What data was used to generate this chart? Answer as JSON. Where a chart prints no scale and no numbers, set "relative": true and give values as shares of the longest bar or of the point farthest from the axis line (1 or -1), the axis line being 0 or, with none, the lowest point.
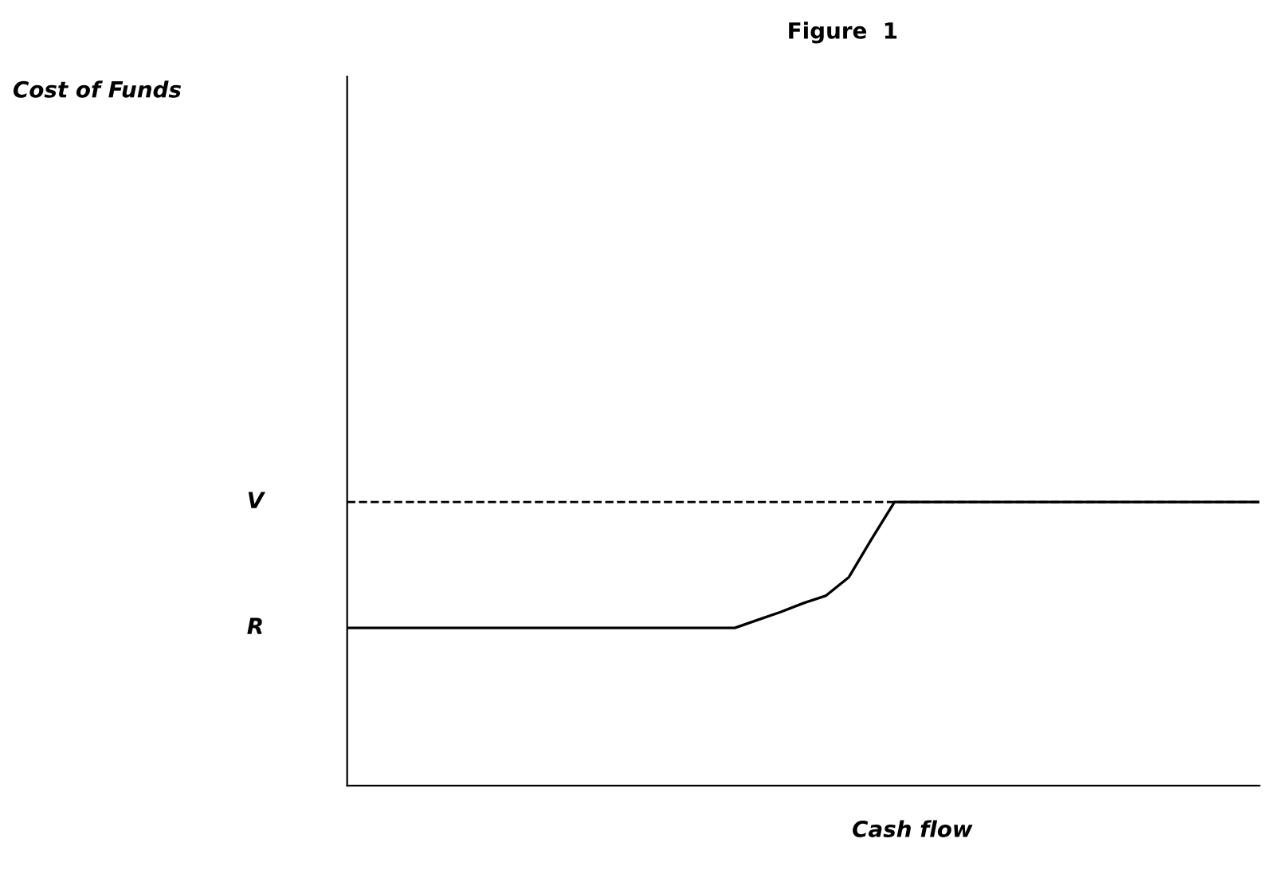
{
  "chart_data": {
    "type": "line",
    "title": "Figure  1",
    "xlabel": "Cash flow",
    "relative": true,
    "marker": "none",
    "line_style": "solid",
    "categories": [
      null,
      null,
      null,
      null,
      null,
      null,
      null,
      null,
      null,
      null,
      null,
      null,
      null,
      null,
      null,
      null,
      null,
      null,
      null,
      null,
      null,
      null,
      null,
      null,
      null,
      null,
      null,
      null,
      null,
      null,
      null,
      null,
      null,
      null,
      null,
      null,
      null,
      null,
      null,
      null,
      null
    ],
    "series": [
      {
        "color": "#000000",
        "values": [
          0.556,
          0.556,
          0.556,
          0.556,
          0.556,
          0.556,
          0.556,
          0.556,
          0.556,
          0.556,
          0.556,
          0.556,
          0.556,
          0.556,
          0.556,
          0.556,
          0.556,
          0.556,
          0.584,
          0.612,
          0.643,
          0.67,
          0.735,
          0.87,
          1.0,
          1.0,
          1.0,
          1.0,
          1.0,
          1.0,
          1.0,
          1.0,
          1.0,
          1.0,
          1.0,
          1.0,
          1.0,
          1.0,
          1.0,
          1.0,
          1.0
        ]
      }
    ],
    "ref_lines": [
      {
        "axis": "y",
        "value": 1.0,
        "label": "V",
        "color": "#000000",
        "line_style": "dashed"
      }
    ],
    "annotations": [
      "Cost of Funds",
      "R"
    ]
  }
}
